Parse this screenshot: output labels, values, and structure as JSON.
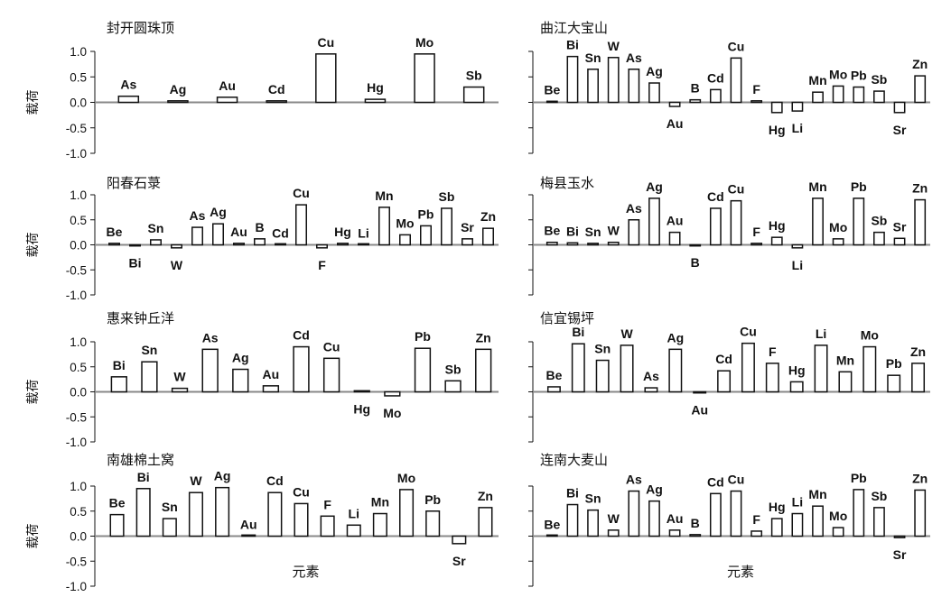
{
  "chart_data": [
    {
      "type": "bar",
      "title": "封开圆珠顶",
      "ylabel": "载荷",
      "xlabel": "",
      "ylim": [
        -1.0,
        1.0
      ],
      "yticks": [
        "1.0",
        "0.5",
        "0.0",
        "-0.5",
        "-1.0"
      ],
      "categories": [
        "As",
        "Ag",
        "Au",
        "Cd",
        "Cu",
        "Hg",
        "Mo",
        "Sb"
      ],
      "values": [
        0.12,
        0.03,
        0.1,
        0.03,
        0.95,
        0.06,
        0.95,
        0.3
      ]
    },
    {
      "type": "bar",
      "title": "曲江大宝山",
      "ylabel": "",
      "xlabel": "",
      "ylim": [
        -1.0,
        1.0
      ],
      "categories": [
        "Be",
        "Bi",
        "Sn",
        "W",
        "As",
        "Ag",
        "Au",
        "B",
        "Cd",
        "Cu",
        "F",
        "Hg",
        "Li",
        "Mn",
        "Mo",
        "Pb",
        "Sb",
        "Sr",
        "Zn"
      ],
      "values": [
        0.02,
        0.9,
        0.65,
        0.88,
        0.65,
        0.38,
        -0.08,
        0.05,
        0.25,
        0.87,
        0.03,
        -0.2,
        -0.17,
        0.2,
        0.32,
        0.3,
        0.22,
        -0.2,
        0.52
      ]
    },
    {
      "type": "bar",
      "title": "阳春石菉",
      "ylabel": "载荷",
      "xlabel": "",
      "ylim": [
        -1.0,
        1.0
      ],
      "yticks": [
        "1.0",
        "0.5",
        "0.0",
        "-0.5",
        "-1.0"
      ],
      "categories": [
        "Be",
        "Bi",
        "Sn",
        "W",
        "As",
        "Ag",
        "Au",
        "B",
        "Cd",
        "Cu",
        "F",
        "Hg",
        "Li",
        "Mn",
        "Mo",
        "Pb",
        "Sb",
        "Sr",
        "Zn"
      ],
      "values": [
        0.03,
        -0.02,
        0.1,
        -0.06,
        0.35,
        0.42,
        0.03,
        0.12,
        0.0,
        0.8,
        -0.06,
        0.03,
        0.0,
        0.75,
        0.2,
        0.38,
        0.73,
        0.12,
        0.33
      ]
    },
    {
      "type": "bar",
      "title": "梅县玉水",
      "ylabel": "",
      "xlabel": "",
      "ylim": [
        -1.0,
        1.0
      ],
      "categories": [
        "Be",
        "Bi",
        "Sn",
        "W",
        "As",
        "Ag",
        "Au",
        "B",
        "Cd",
        "Cu",
        "F",
        "Hg",
        "Li",
        "Mn",
        "Mo",
        "Pb",
        "Sb",
        "Sr",
        "Zn"
      ],
      "values": [
        0.05,
        0.04,
        0.03,
        0.05,
        0.5,
        0.93,
        0.25,
        -0.01,
        0.73,
        0.88,
        0.03,
        0.15,
        -0.06,
        0.93,
        0.12,
        0.93,
        0.25,
        0.13,
        0.9
      ]
    },
    {
      "type": "bar",
      "title": "惠来钟丘洋",
      "ylabel": "载荷",
      "xlabel": "",
      "ylim": [
        -1.0,
        1.0
      ],
      "yticks": [
        "1.0",
        "0.5",
        "0.0",
        "-0.5",
        "-1.0"
      ],
      "categories": [
        "Bi",
        "Sn",
        "W",
        "As",
        "Ag",
        "Au",
        "Cd",
        "Cu",
        "Hg",
        "Mo",
        "Pb",
        "Sb",
        "Zn"
      ],
      "values": [
        0.3,
        0.6,
        0.07,
        0.85,
        0.45,
        0.12,
        0.9,
        0.67,
        0.0,
        -0.08,
        0.87,
        0.22,
        0.85
      ]
    },
    {
      "type": "bar",
      "title": "信宜锡坪",
      "ylabel": "",
      "xlabel": "",
      "ylim": [
        -1.0,
        1.0
      ],
      "categories": [
        "Be",
        "Bi",
        "Sn",
        "W",
        "As",
        "Ag",
        "Au",
        "Cd",
        "Cu",
        "F",
        "Hg",
        "Li",
        "Mn",
        "Mo",
        "Pb",
        "Zn"
      ],
      "values": [
        0.1,
        0.96,
        0.63,
        0.93,
        0.08,
        0.85,
        -0.02,
        0.42,
        0.97,
        0.57,
        0.2,
        0.93,
        0.4,
        0.9,
        0.33,
        0.57
      ]
    },
    {
      "type": "bar",
      "title": "南雄棉土窝",
      "ylabel": "载荷",
      "xlabel": "元素",
      "ylim": [
        -1.0,
        1.0
      ],
      "yticks": [
        "1.0",
        "0.5",
        "0.0",
        "-0.5",
        "-1.0"
      ],
      "categories": [
        "Be",
        "Bi",
        "Sn",
        "W",
        "Ag",
        "Au",
        "Cd",
        "Cu",
        "F",
        "Li",
        "Mn",
        "Mo",
        "Pb",
        "Sr",
        "Zn"
      ],
      "values": [
        0.43,
        0.95,
        0.35,
        0.87,
        0.97,
        0.0,
        0.87,
        0.65,
        0.4,
        0.22,
        0.45,
        0.93,
        0.5,
        -0.15,
        0.57
      ]
    },
    {
      "type": "bar",
      "title": "连南大麦山",
      "ylabel": "",
      "xlabel": "元素",
      "ylim": [
        -1.0,
        1.0
      ],
      "categories": [
        "Be",
        "Bi",
        "Sn",
        "W",
        "As",
        "Ag",
        "Au",
        "B",
        "Cd",
        "Cu",
        "F",
        "Hg",
        "Li",
        "Mn",
        "Mo",
        "Pb",
        "Sb",
        "Sr",
        "Zn"
      ],
      "values": [
        0.0,
        0.63,
        0.52,
        0.12,
        0.9,
        0.7,
        0.12,
        0.03,
        0.85,
        0.9,
        0.1,
        0.35,
        0.45,
        0.6,
        0.17,
        0.93,
        0.57,
        -0.03,
        0.92
      ]
    }
  ],
  "label_hints": [
    {
      "W": "b"
    },
    {
      "Au": "b",
      "Hg": "b",
      "Li": "b",
      "Sr": "b"
    },
    {
      "Bi": "b",
      "W": "b",
      "F": "b"
    },
    {
      "B": "b",
      "Li": "b"
    },
    {
      "Hg": "b",
      "Mo": "b"
    },
    {
      "Au": "b"
    },
    {
      "Sr": "b"
    },
    {
      "Sr": "b"
    }
  ]
}
